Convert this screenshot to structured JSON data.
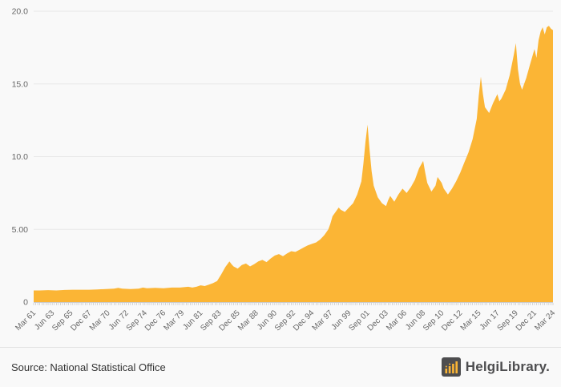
{
  "chart_data": {
    "type": "area",
    "title": "",
    "xlabel": "",
    "ylabel": "",
    "grid": true,
    "legend": "none",
    "xlim": [
      1961.25,
      2024.25
    ],
    "ylim": [
      0,
      20
    ],
    "y_ticks": [
      {
        "value": 0,
        "label": "0"
      },
      {
        "value": 5,
        "label": "5.00"
      },
      {
        "value": 10,
        "label": "10.0"
      },
      {
        "value": 15,
        "label": "15.0"
      },
      {
        "value": 20,
        "label": "20.0"
      }
    ],
    "x_ticks": {
      "start": 1961.25,
      "step": 2.25,
      "labels": [
        "Mar 61",
        "Jun 63",
        "Sep 65",
        "Dec 67",
        "Mar 70",
        "Jun 72",
        "Sep 74",
        "Dec 76",
        "Mar 79",
        "Jun 81",
        "Sep 83",
        "Dec 85",
        "Mar 88",
        "Jun 90",
        "Sep 92",
        "Dec 94",
        "Mar 97",
        "Jun 99",
        "Sep 01",
        "Dec 03",
        "Mar 06",
        "Jun 08",
        "Sep 10",
        "Dec 12",
        "Mar 15",
        "Jun 17",
        "Sep 19",
        "Dec 21",
        "Mar 24"
      ]
    },
    "minor_tick_step": 0.25,
    "points": [
      [
        1961.25,
        0.8
      ],
      [
        1962,
        0.8
      ],
      [
        1963,
        0.82
      ],
      [
        1964,
        0.8
      ],
      [
        1965,
        0.83
      ],
      [
        1966,
        0.85
      ],
      [
        1967,
        0.85
      ],
      [
        1968,
        0.85
      ],
      [
        1969,
        0.87
      ],
      [
        1970,
        0.9
      ],
      [
        1971,
        0.92
      ],
      [
        1971.5,
        0.98
      ],
      [
        1972,
        0.92
      ],
      [
        1973,
        0.9
      ],
      [
        1974,
        0.92
      ],
      [
        1974.5,
        1.0
      ],
      [
        1975,
        0.95
      ],
      [
        1976,
        0.98
      ],
      [
        1977,
        0.95
      ],
      [
        1978,
        1.0
      ],
      [
        1979,
        1.0
      ],
      [
        1980,
        1.05
      ],
      [
        1980.5,
        1.0
      ],
      [
        1981,
        1.05
      ],
      [
        1981.5,
        1.15
      ],
      [
        1982,
        1.1
      ],
      [
        1982.5,
        1.2
      ],
      [
        1983,
        1.3
      ],
      [
        1983.5,
        1.45
      ],
      [
        1984,
        1.9
      ],
      [
        1984.5,
        2.4
      ],
      [
        1985,
        2.8
      ],
      [
        1985.25,
        2.6
      ],
      [
        1985.5,
        2.45
      ],
      [
        1986,
        2.3
      ],
      [
        1986.5,
        2.55
      ],
      [
        1987,
        2.65
      ],
      [
        1987.5,
        2.45
      ],
      [
        1988,
        2.6
      ],
      [
        1988.5,
        2.8
      ],
      [
        1989,
        2.9
      ],
      [
        1989.5,
        2.75
      ],
      [
        1990,
        3.0
      ],
      [
        1990.5,
        3.2
      ],
      [
        1991,
        3.3
      ],
      [
        1991.5,
        3.15
      ],
      [
        1992,
        3.35
      ],
      [
        1992.5,
        3.5
      ],
      [
        1993,
        3.45
      ],
      [
        1993.5,
        3.6
      ],
      [
        1994,
        3.75
      ],
      [
        1994.5,
        3.9
      ],
      [
        1995,
        4.0
      ],
      [
        1995.5,
        4.1
      ],
      [
        1996,
        4.3
      ],
      [
        1996.5,
        4.6
      ],
      [
        1997,
        5.0
      ],
      [
        1997.25,
        5.4
      ],
      [
        1997.5,
        5.9
      ],
      [
        1998,
        6.3
      ],
      [
        1998.25,
        6.5
      ],
      [
        1998.5,
        6.35
      ],
      [
        1999,
        6.2
      ],
      [
        1999.5,
        6.5
      ],
      [
        2000,
        6.8
      ],
      [
        2000.5,
        7.4
      ],
      [
        2001,
        8.3
      ],
      [
        2001.25,
        9.5
      ],
      [
        2001.5,
        11.0
      ],
      [
        2001.75,
        12.2
      ],
      [
        2002,
        10.5
      ],
      [
        2002.25,
        9.0
      ],
      [
        2002.5,
        8.0
      ],
      [
        2003,
        7.2
      ],
      [
        2003.5,
        6.8
      ],
      [
        2004,
        6.6
      ],
      [
        2004.25,
        7.0
      ],
      [
        2004.5,
        7.3
      ],
      [
        2005,
        6.9
      ],
      [
        2005.5,
        7.4
      ],
      [
        2006,
        7.8
      ],
      [
        2006.5,
        7.5
      ],
      [
        2007,
        7.9
      ],
      [
        2007.5,
        8.4
      ],
      [
        2008,
        9.2
      ],
      [
        2008.5,
        9.7
      ],
      [
        2008.75,
        8.9
      ],
      [
        2009,
        8.2
      ],
      [
        2009.5,
        7.6
      ],
      [
        2010,
        8.0
      ],
      [
        2010.25,
        8.6
      ],
      [
        2010.75,
        8.2
      ],
      [
        2011,
        7.8
      ],
      [
        2011.5,
        7.4
      ],
      [
        2012,
        7.8
      ],
      [
        2012.5,
        8.3
      ],
      [
        2013,
        8.9
      ],
      [
        2013.5,
        9.6
      ],
      [
        2014,
        10.3
      ],
      [
        2014.5,
        11.2
      ],
      [
        2015,
        12.6
      ],
      [
        2015.25,
        14.2
      ],
      [
        2015.5,
        15.5
      ],
      [
        2015.75,
        14.3
      ],
      [
        2016,
        13.4
      ],
      [
        2016.5,
        13.0
      ],
      [
        2017,
        13.7
      ],
      [
        2017.5,
        14.3
      ],
      [
        2017.75,
        13.8
      ],
      [
        2018,
        14.0
      ],
      [
        2018.5,
        14.6
      ],
      [
        2019,
        15.6
      ],
      [
        2019.5,
        17.0
      ],
      [
        2019.75,
        17.8
      ],
      [
        2020,
        16.0
      ],
      [
        2020.25,
        15.0
      ],
      [
        2020.5,
        14.6
      ],
      [
        2021,
        15.4
      ],
      [
        2021.5,
        16.4
      ],
      [
        2022,
        17.4
      ],
      [
        2022.25,
        16.8
      ],
      [
        2022.5,
        18.0
      ],
      [
        2022.75,
        18.6
      ],
      [
        2023,
        18.9
      ],
      [
        2023.25,
        18.4
      ],
      [
        2023.5,
        18.9
      ],
      [
        2023.75,
        19.0
      ],
      [
        2024,
        18.8
      ],
      [
        2024.25,
        18.7
      ]
    ]
  },
  "footer": {
    "source_label": "Source: National Statistical Office",
    "brand": "HelgiLibrary."
  },
  "colors": {
    "area": "#FBB535",
    "grid": "#e8e8e8",
    "axis": "#cccccc",
    "tick": "#bbbbbb",
    "tick_label": "#666666",
    "background": "#f9f9f9",
    "footer_text": "#333333",
    "logo_dark": "#4d4d4f",
    "logo_yellow": "#FBB535"
  }
}
